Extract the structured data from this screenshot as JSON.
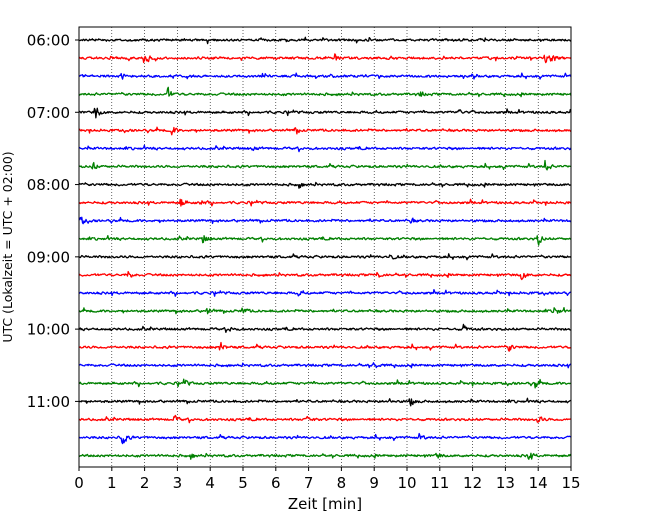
{
  "chart_data": {
    "type": "line",
    "title": "",
    "xlabel": "Zeit  [min]",
    "ylabel": "UTC (Lokalzeit = UTC + 02:00)",
    "xlim": [
      0,
      15
    ],
    "x_ticks": [
      "0",
      "1",
      "2",
      "3",
      "4",
      "5",
      "6",
      "7",
      "8",
      "9",
      "10",
      "11",
      "12",
      "13",
      "14",
      "15"
    ],
    "y_tick_labels": [
      "06:00",
      "07:00",
      "08:00",
      "09:00",
      "10:00",
      "11:00"
    ],
    "grid": "vertical dotted lines at each minute",
    "trace_interval_minutes": 15,
    "trace_colors": [
      "#000000",
      "#ff0000",
      "#0000ff",
      "#008000"
    ],
    "traces": [
      {
        "start": "06:00",
        "color": "#000000",
        "events": []
      },
      {
        "start": "06:15",
        "color": "#ff0000",
        "events": [
          [
            2.0,
            9
          ],
          [
            7.8,
            5
          ],
          [
            14.2,
            6
          ],
          [
            14.4,
            7
          ]
        ]
      },
      {
        "start": "06:30",
        "color": "#0000ff",
        "events": [
          [
            1.3,
            4
          ]
        ]
      },
      {
        "start": "06:45",
        "color": "#008000",
        "events": [
          [
            2.7,
            9
          ],
          [
            10.4,
            4
          ]
        ]
      },
      {
        "start": "07:00",
        "color": "#000000",
        "events": [
          [
            0.5,
            10
          ],
          [
            11.6,
            3
          ]
        ]
      },
      {
        "start": "07:15",
        "color": "#ff0000",
        "events": [
          [
            2.8,
            11
          ],
          [
            6.6,
            4
          ]
        ]
      },
      {
        "start": "07:30",
        "color": "#0000ff",
        "events": [
          [
            5.3,
            3
          ]
        ]
      },
      {
        "start": "07:45",
        "color": "#008000",
        "events": [
          [
            0.4,
            8
          ],
          [
            14.2,
            10
          ]
        ]
      },
      {
        "start": "08:00",
        "color": "#000000",
        "events": [
          [
            6.7,
            5
          ]
        ]
      },
      {
        "start": "08:15",
        "color": "#ff0000",
        "events": [
          [
            3.1,
            8
          ],
          [
            3.7,
            4
          ]
        ]
      },
      {
        "start": "08:30",
        "color": "#0000ff",
        "events": [
          [
            0.05,
            7
          ],
          [
            10.1,
            4
          ]
        ]
      },
      {
        "start": "08:45",
        "color": "#008000",
        "events": [
          [
            3.8,
            8
          ],
          [
            14.0,
            9
          ]
        ]
      },
      {
        "start": "09:00",
        "color": "#000000",
        "events": [
          [
            9.5,
            4
          ]
        ]
      },
      {
        "start": "09:15",
        "color": "#ff0000",
        "events": [
          [
            1.5,
            5
          ],
          [
            9.1,
            4
          ],
          [
            13.5,
            7
          ]
        ]
      },
      {
        "start": "09:30",
        "color": "#0000ff",
        "events": [
          [
            6.7,
            4
          ]
        ]
      },
      {
        "start": "09:45",
        "color": "#008000",
        "events": [
          [
            3.9,
            6
          ],
          [
            5.0,
            5
          ],
          [
            14.5,
            8
          ]
        ]
      },
      {
        "start": "10:00",
        "color": "#000000",
        "events": [
          [
            4.6,
            3
          ],
          [
            11.7,
            7
          ]
        ]
      },
      {
        "start": "10:15",
        "color": "#ff0000",
        "events": [
          [
            4.3,
            8
          ],
          [
            13.1,
            6
          ]
        ]
      },
      {
        "start": "10:30",
        "color": "#0000ff",
        "events": [
          [
            9.0,
            5
          ]
        ]
      },
      {
        "start": "10:45",
        "color": "#008000",
        "events": [
          [
            3.2,
            6
          ],
          [
            13.9,
            7
          ]
        ]
      },
      {
        "start": "11:00",
        "color": "#000000",
        "events": [
          [
            9.4,
            5
          ],
          [
            10.1,
            6
          ]
        ]
      },
      {
        "start": "11:15",
        "color": "#ff0000",
        "events": [
          [
            2.9,
            5
          ],
          [
            6.9,
            7
          ],
          [
            14.0,
            6
          ]
        ]
      },
      {
        "start": "11:30",
        "color": "#0000ff",
        "events": [
          [
            1.3,
            16
          ],
          [
            10.4,
            3
          ]
        ]
      },
      {
        "start": "11:45",
        "color": "#008000",
        "events": [
          [
            3.4,
            5
          ],
          [
            10.9,
            5
          ],
          [
            13.7,
            7
          ]
        ]
      }
    ]
  }
}
